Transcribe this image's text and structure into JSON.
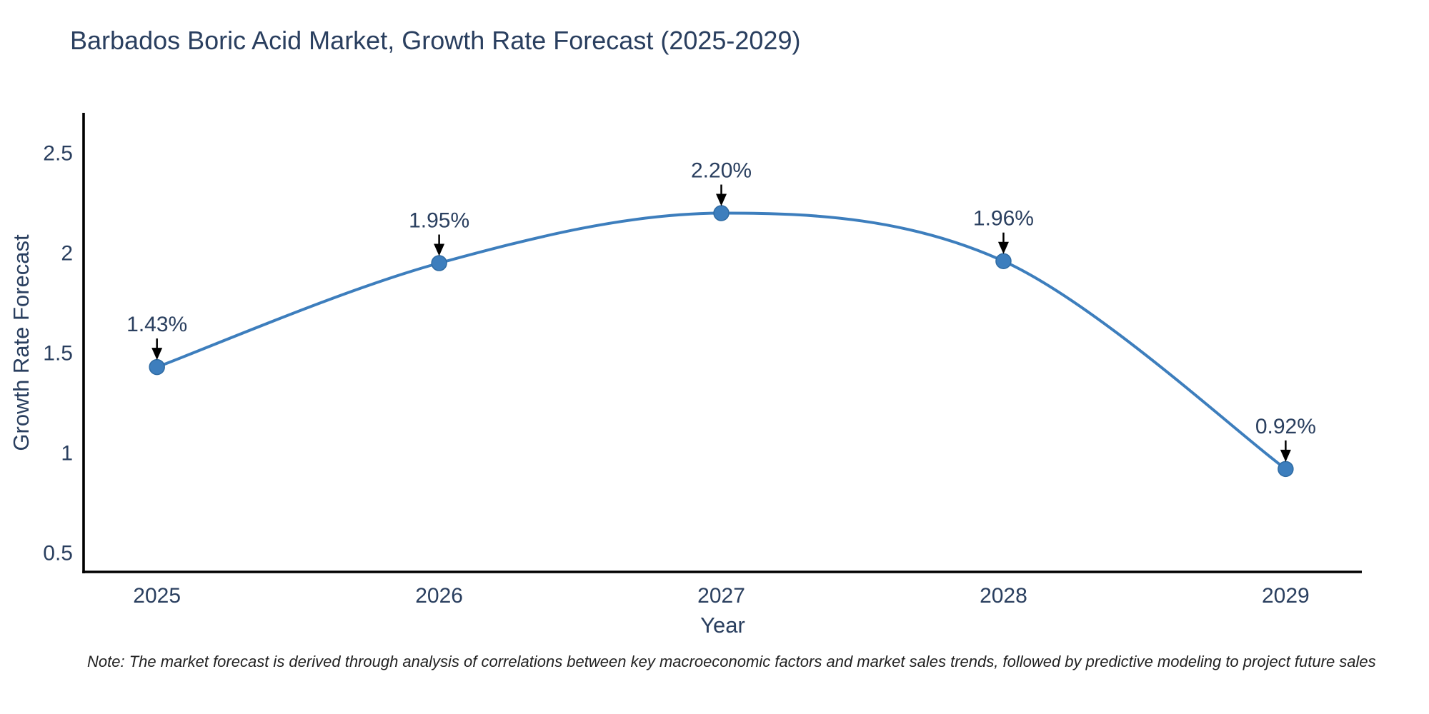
{
  "note": "Note: The market forecast is derived through analysis of correlations between key macroeconomic factors and market sales trends, followed by predictive modeling to project future sales",
  "chart_data": {
    "type": "line",
    "title": "Barbados Boric Acid Market, Growth Rate Forecast (2025-2029)",
    "xlabel": "Year",
    "ylabel": "Growth Rate Forecast",
    "x": [
      2025,
      2026,
      2027,
      2028,
      2029
    ],
    "values": [
      1.43,
      1.95,
      2.2,
      1.96,
      0.92
    ],
    "point_labels": [
      "1.43%",
      "1.95%",
      "2.20%",
      "1.96%",
      "0.92%"
    ],
    "xtick_labels": [
      "2025",
      "2026",
      "2027",
      "2028",
      "2029"
    ],
    "yticks": [
      0.5,
      1,
      1.5,
      2,
      2.5
    ],
    "ytick_labels": [
      "0.5",
      "1",
      "1.5",
      "2",
      "2.5"
    ],
    "xlim": [
      2024.74,
      2029.27
    ],
    "ylim": [
      0.405,
      2.702
    ],
    "grid": false,
    "legend": false,
    "line_shape": "spline",
    "colors": {
      "line": "#3d7ebd",
      "marker": "#3d7ebd",
      "marker_edge": "#2f6ba3",
      "axis": "#000000",
      "text": "#2a3f5f",
      "annotation": "#2a3f5f",
      "arrow": "#000000"
    }
  }
}
